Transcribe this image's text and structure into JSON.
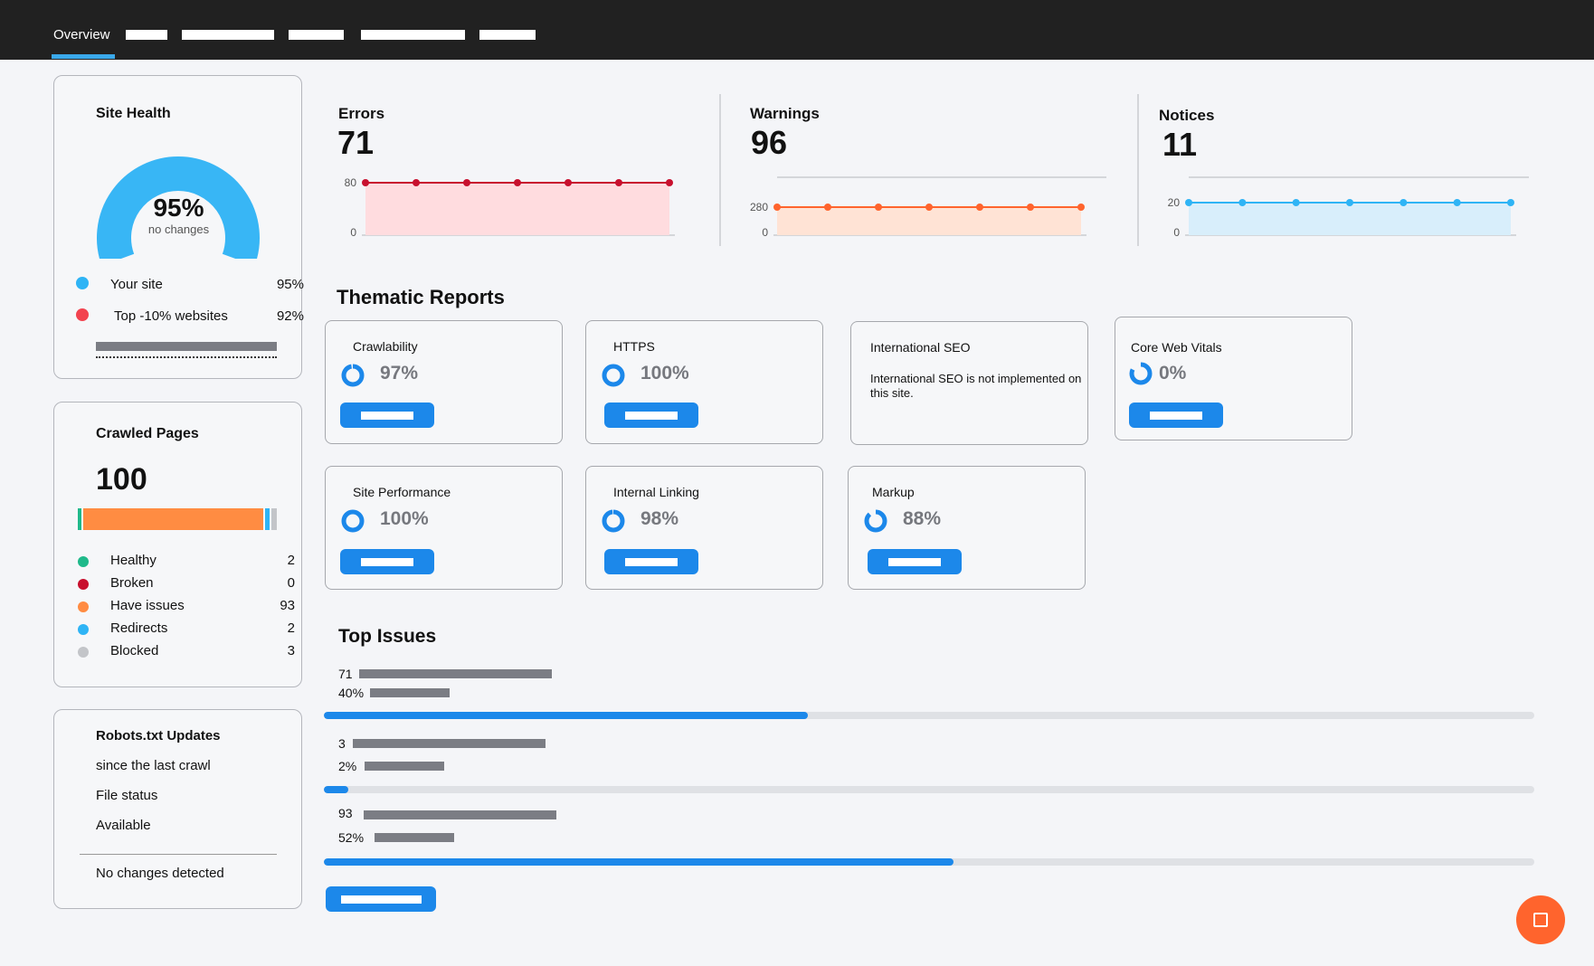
{
  "nav": {
    "active_tab": "Overview"
  },
  "site_health": {
    "title": "Site Health",
    "value": "95%",
    "value_fraction": 0.95,
    "subtitle": "no changes",
    "legend": [
      {
        "label": "Your site",
        "value": "95%",
        "color": "#2fb4f5"
      },
      {
        "label": "Top -10% websites",
        "value": "92%",
        "color": "#f2434f"
      }
    ],
    "gauge_color": "#38b6f5"
  },
  "crawled_pages": {
    "title": "Crawled Pages",
    "total": "100",
    "rows": [
      {
        "label": "Healthy",
        "value": "2",
        "color": "#1fb98a"
      },
      {
        "label": "Broken",
        "value": "0",
        "color": "#c8102e"
      },
      {
        "label": "Have issues",
        "value": "93",
        "color": "#ff8c42"
      },
      {
        "label": "Redirects",
        "value": "2",
        "color": "#2fb4f5"
      },
      {
        "label": "Blocked",
        "value": "3",
        "color": "#c3c5c9"
      }
    ]
  },
  "robots": {
    "title": "Robots.txt Updates",
    "since": "since the last crawl",
    "file_status_label": "File status",
    "file_status": "Available",
    "changes": "No changes detected"
  },
  "errors": {
    "title": "Errors",
    "value": "71",
    "color": "#c8102e",
    "axis_top": "80",
    "axis_bottom": "0"
  },
  "warnings": {
    "title": "Warnings",
    "value": "96",
    "color": "#ff642d",
    "axis_top": "280",
    "axis_bottom": "0"
  },
  "notices": {
    "title": "Notices",
    "value": "11",
    "color": "#2fb4f5",
    "axis_top": "20",
    "axis_bottom": "0"
  },
  "thematic": {
    "title": "Thematic Reports",
    "cards": [
      {
        "name": "Crawlability",
        "pct": "97%",
        "fraction": 0.97
      },
      {
        "name": "HTTPS",
        "pct": "100%",
        "fraction": 1.0
      },
      {
        "name": "International SEO",
        "message": "International SEO is not implemented on this site."
      },
      {
        "name": "Core Web Vitals",
        "pct": "0%",
        "fraction": 0.0
      },
      {
        "name": "Site Performance",
        "pct": "100%",
        "fraction": 1.0
      },
      {
        "name": "Internal Linking",
        "pct": "98%",
        "fraction": 0.98
      },
      {
        "name": "Markup",
        "pct": "88%",
        "fraction": 0.88
      }
    ]
  },
  "top_issues": {
    "title": "Top Issues",
    "items": [
      {
        "count": "71",
        "pct": "40%",
        "fraction": 0.4
      },
      {
        "count": "3",
        "pct": "2%",
        "fraction": 0.02
      },
      {
        "count": "93",
        "pct": "52%",
        "fraction": 0.52
      }
    ]
  },
  "colors": {
    "accent": "#1c88ea",
    "nav_bg": "#212121",
    "fab": "#ff642d"
  },
  "icons": {
    "fab": "chat-icon"
  }
}
